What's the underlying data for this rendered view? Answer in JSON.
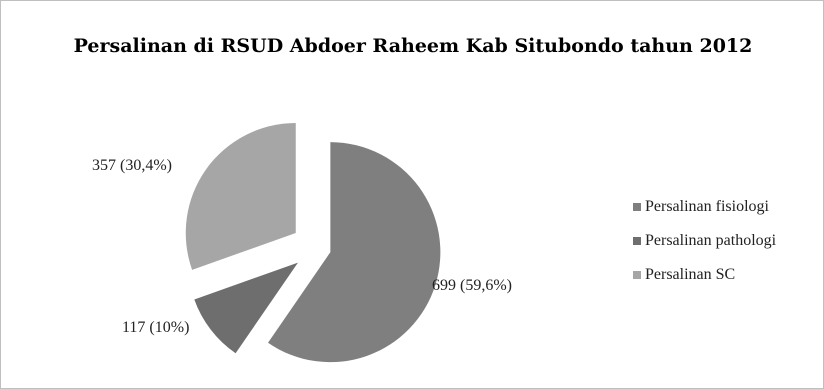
{
  "chart_data": {
    "type": "pie",
    "title": "Persalinan di RSUD Abdoer Raheem Kab Situbondo tahun 2012",
    "slices": [
      {
        "name": "Persalinan fisiologi",
        "value": 699,
        "label": "699 (59,6%)",
        "color": "#7f7f7f"
      },
      {
        "name": "Persalinan pathologi",
        "value": 117,
        "label": "117 (10%)",
        "color": "#6e6e6e"
      },
      {
        "name": "Persalinan SC",
        "value": 357,
        "label": "357 (30,4%)",
        "color": "#a6a6a6"
      }
    ],
    "legend_position": "right"
  }
}
